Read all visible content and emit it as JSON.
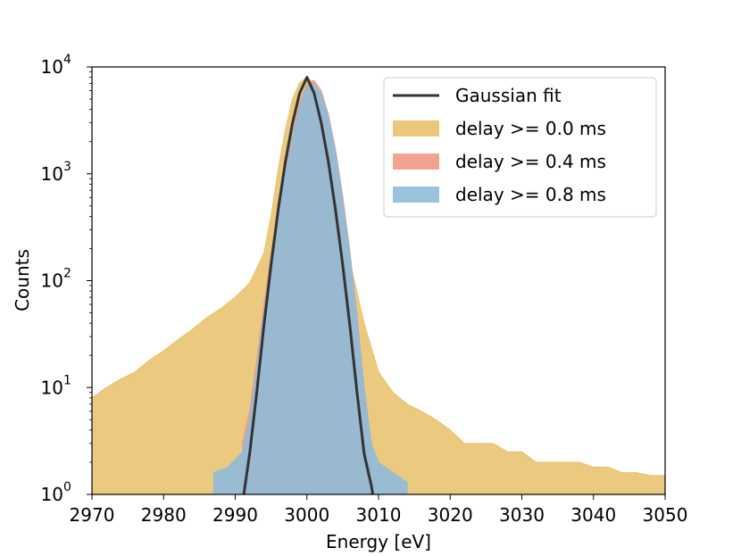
{
  "chart_data": {
    "type": "area",
    "title": "",
    "xlabel": "Energy [eV]",
    "ylabel": "Counts",
    "xlim": [
      2970,
      3050
    ],
    "ylim": [
      1,
      10000
    ],
    "yscale": "log",
    "grid": false,
    "legend_position": "top-right",
    "x_ticks": [
      2970,
      2980,
      2990,
      3000,
      3010,
      3020,
      3030,
      3040,
      3050
    ],
    "x_tick_labels": [
      "2970",
      "2980",
      "2990",
      "3000",
      "3010",
      "3020",
      "3030",
      "3040",
      "3050"
    ],
    "y_ticks": [
      1,
      10,
      100,
      1000,
      10000
    ],
    "y_tick_labels": [
      {
        "base": "10",
        "exp": "0"
      },
      {
        "base": "10",
        "exp": "1"
      },
      {
        "base": "10",
        "exp": "2"
      },
      {
        "base": "10",
        "exp": "3"
      },
      {
        "base": "10",
        "exp": "4"
      }
    ],
    "legend": [
      {
        "label": "Gaussian fit",
        "kind": "line",
        "color": "#333333"
      },
      {
        "label": "delay >= 0.0 ms",
        "kind": "area",
        "color": "#e8c16a"
      },
      {
        "label": "delay >= 0.4 ms",
        "kind": "area",
        "color": "#ee9a83"
      },
      {
        "label": "delay >= 0.8 ms",
        "kind": "area",
        "color": "#8fbbd9"
      }
    ],
    "series": [
      {
        "name": "delay >= 0.0 ms",
        "kind": "histogram",
        "color": "#e8c16a",
        "opacity": 0.85,
        "x": [
          2970,
          2972,
          2974,
          2976,
          2978,
          2980,
          2982,
          2984,
          2986,
          2988,
          2990,
          2992,
          2994,
          2995,
          2996,
          2997,
          2998,
          2999,
          3000,
          3001,
          3002,
          3003,
          3004,
          3005,
          3006,
          3008,
          3010,
          3012,
          3014,
          3016,
          3018,
          3020,
          3022,
          3024,
          3026,
          3028,
          3030,
          3032,
          3034,
          3036,
          3038,
          3040,
          3042,
          3044,
          3046,
          3048,
          3050
        ],
        "y": [
          8,
          10,
          12,
          14,
          18,
          22,
          28,
          35,
          45,
          55,
          70,
          95,
          180,
          400,
          1100,
          2600,
          5000,
          7200,
          7900,
          7200,
          5000,
          2600,
          1100,
          400,
          150,
          40,
          14,
          9,
          7,
          6,
          5,
          4,
          3,
          3,
          3,
          2.5,
          2.5,
          2,
          2,
          2,
          2,
          1.8,
          1.8,
          1.6,
          1.6,
          1.5,
          1.5
        ]
      },
      {
        "name": "delay >= 0.4 ms",
        "kind": "histogram",
        "color": "#ee9a83",
        "opacity": 0.85,
        "x": [
          2991,
          2992,
          2993,
          2994,
          2995,
          2996,
          2997,
          2998,
          2999,
          3000,
          3001,
          3002,
          3003,
          3004,
          3005,
          3006,
          3007,
          3008,
          3009
        ],
        "y": [
          3,
          6,
          18,
          60,
          180,
          480,
          1100,
          2400,
          4600,
          7000,
          7500,
          6000,
          3600,
          1700,
          620,
          190,
          48,
          10,
          2
        ]
      },
      {
        "name": "delay >= 0.8 ms",
        "kind": "histogram",
        "color": "#8fbbd9",
        "opacity": 0.9,
        "x": [
          2987,
          2989,
          2991,
          2992,
          2993,
          2994,
          2995,
          2996,
          2997,
          2998,
          2999,
          3000,
          3001,
          3002,
          3003,
          3004,
          3005,
          3006,
          3007,
          3008,
          3009,
          3010,
          3012,
          3014
        ],
        "y": [
          1.6,
          1.8,
          2.5,
          5,
          15,
          50,
          160,
          420,
          1000,
          2200,
          4300,
          6600,
          7000,
          5600,
          3400,
          1600,
          580,
          180,
          45,
          10,
          3,
          2,
          1.6,
          1.3
        ]
      },
      {
        "name": "Gaussian fit",
        "kind": "line",
        "color": "#333333",
        "peak_x": 3000,
        "peak_y": 8000,
        "x": [
          2991.2,
          2992,
          2993,
          2994,
          2995,
          2996,
          2997,
          2998,
          2999,
          3000,
          3001,
          3002,
          3003,
          3004,
          3005,
          3006,
          3007,
          3008,
          3009,
          3009.2
        ],
        "y": [
          1,
          2.4,
          9,
          38,
          140,
          460,
          1300,
          3000,
          5700,
          8000,
          5700,
          3000,
          1300,
          460,
          140,
          38,
          9,
          2.4,
          1.2,
          1
        ]
      }
    ]
  }
}
